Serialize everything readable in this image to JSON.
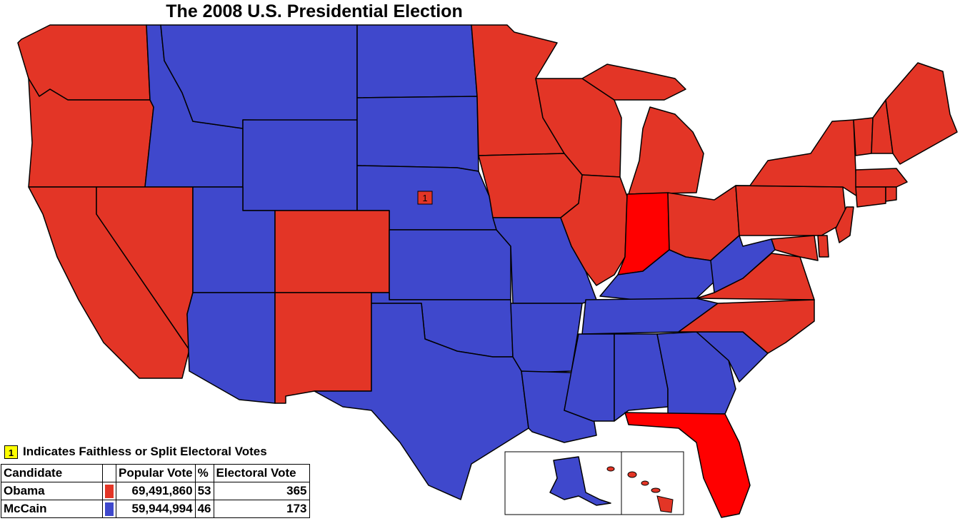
{
  "title": "The 2008 U.S. Presidential Election",
  "colors": {
    "obama": "#e33526",
    "mccain": "#3f48cc",
    "obama_flipped": "#ff0000",
    "faithless_marker": "#ffff00",
    "border": "#000000"
  },
  "map": {
    "faithless_marker_label": "1"
  },
  "legend": {
    "faithless_marker": "1",
    "faithless_note": "Indicates Faithless or Split Electoral Votes"
  },
  "results_table": {
    "headers": [
      "Candidate",
      "",
      "Popular Vote",
      "%",
      "Electoral Vote"
    ],
    "rows": [
      {
        "candidate": "Obama",
        "popular_vote": "69,491,860",
        "percent": "53",
        "electoral_vote": "365"
      },
      {
        "candidate": "McCain",
        "popular_vote": "59,944,994",
        "percent": "46",
        "electoral_vote": "173"
      }
    ]
  }
}
